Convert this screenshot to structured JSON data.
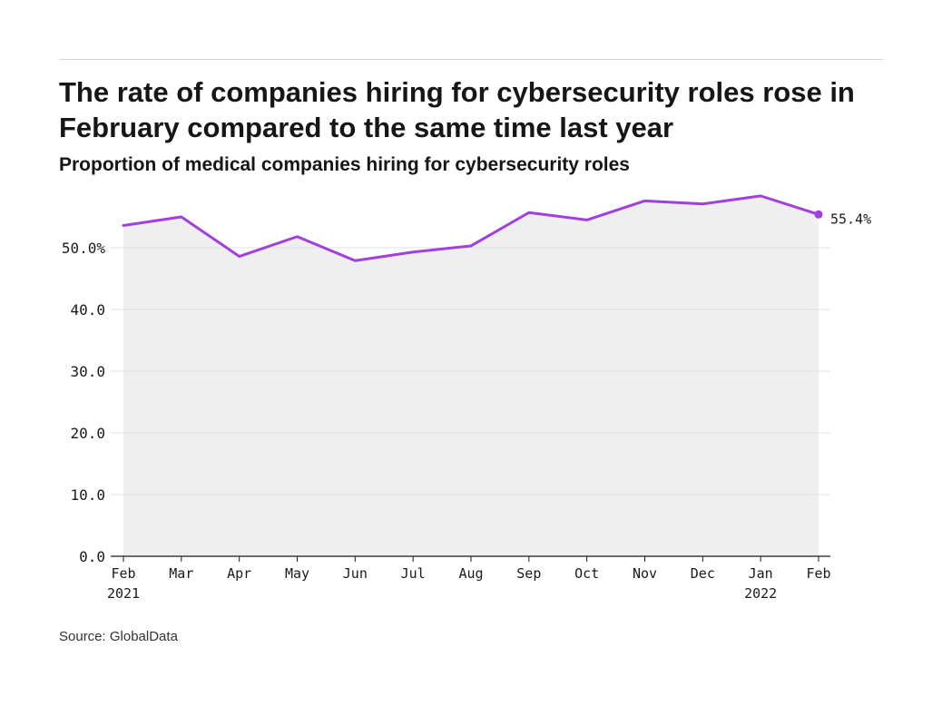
{
  "header": {
    "title": "The rate of companies hiring for cybersecurity roles rose in February compared to the same time last year",
    "subtitle": "Proportion of medical companies hiring for cybersecurity roles"
  },
  "footer": {
    "source": "Source: GlobalData"
  },
  "chart_data": {
    "type": "area",
    "title": "The rate of companies hiring for cybersecurity roles rose in February compared to the same time last year",
    "subtitle": "Proportion of medical companies hiring for cybersecurity roles",
    "xlabel": "",
    "ylabel": "",
    "categories": [
      "Feb",
      "Mar",
      "Apr",
      "May",
      "Jun",
      "Jul",
      "Aug",
      "Sep",
      "Oct",
      "Nov",
      "Dec",
      "Jan",
      "Feb"
    ],
    "category_year_labels": [
      "2021",
      "",
      "",
      "",
      "",
      "",
      "",
      "",
      "",
      "",
      "",
      "2022",
      ""
    ],
    "series": [
      {
        "values": [
          53.6,
          55.0,
          48.6,
          51.8,
          47.9,
          49.3,
          50.3,
          55.7,
          54.5,
          57.6,
          57.1,
          58.4,
          55.4
        ]
      }
    ],
    "ylim": [
      0,
      60
    ],
    "yticks": [
      0,
      10,
      20,
      30,
      40,
      50
    ],
    "ytick_labels": [
      "0.0",
      "10.0",
      "20.0",
      "30.0",
      "40.0",
      "50.0%"
    ],
    "end_label": "55.4%",
    "grid": true,
    "legend": "none",
    "colors": {
      "line": "#a040e0",
      "area": "#efeff0",
      "grid": "#e2e2e2",
      "axis": "#1a1a1a",
      "text": "#1a1a1a"
    }
  }
}
